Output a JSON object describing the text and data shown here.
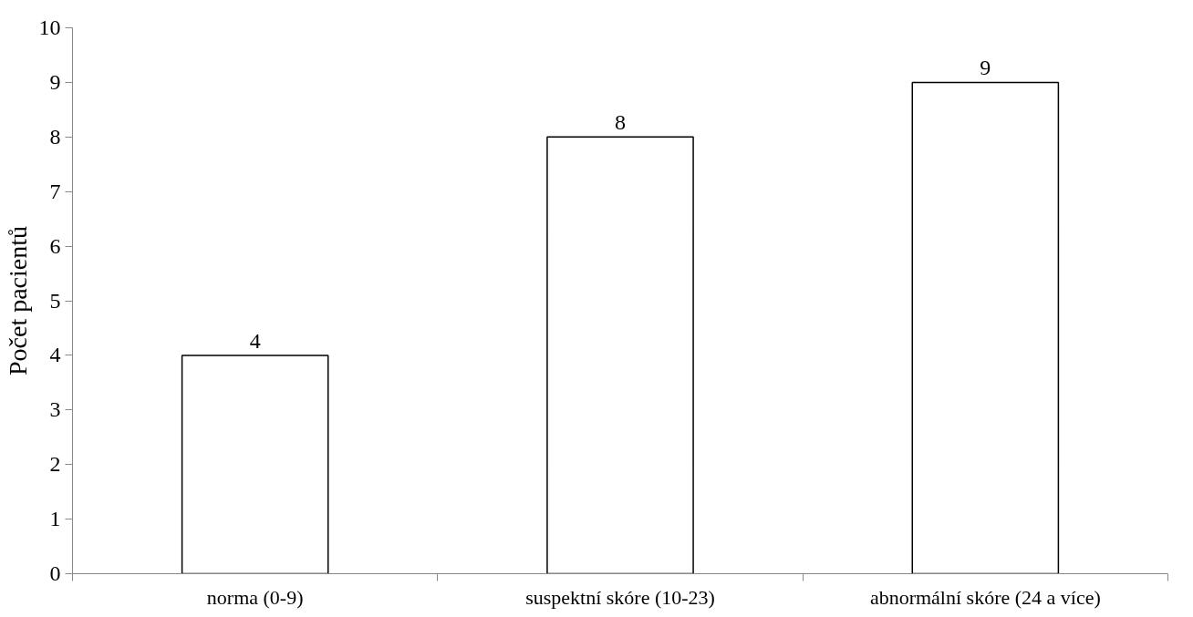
{
  "chart_data": {
    "type": "bar",
    "ylabel": "Počet pacientů",
    "categories": [
      "norma (0-9)",
      "suspektní skóre (10-23)",
      "abnormální skóre (24 a více)"
    ],
    "values": [
      4,
      8,
      9
    ],
    "color": "#ffffff",
    "ylim": [
      0,
      10
    ],
    "yticks": [
      0,
      1,
      2,
      3,
      4,
      5,
      6,
      7,
      8,
      9,
      10
    ],
    "data_labels": true,
    "grid": false
  }
}
